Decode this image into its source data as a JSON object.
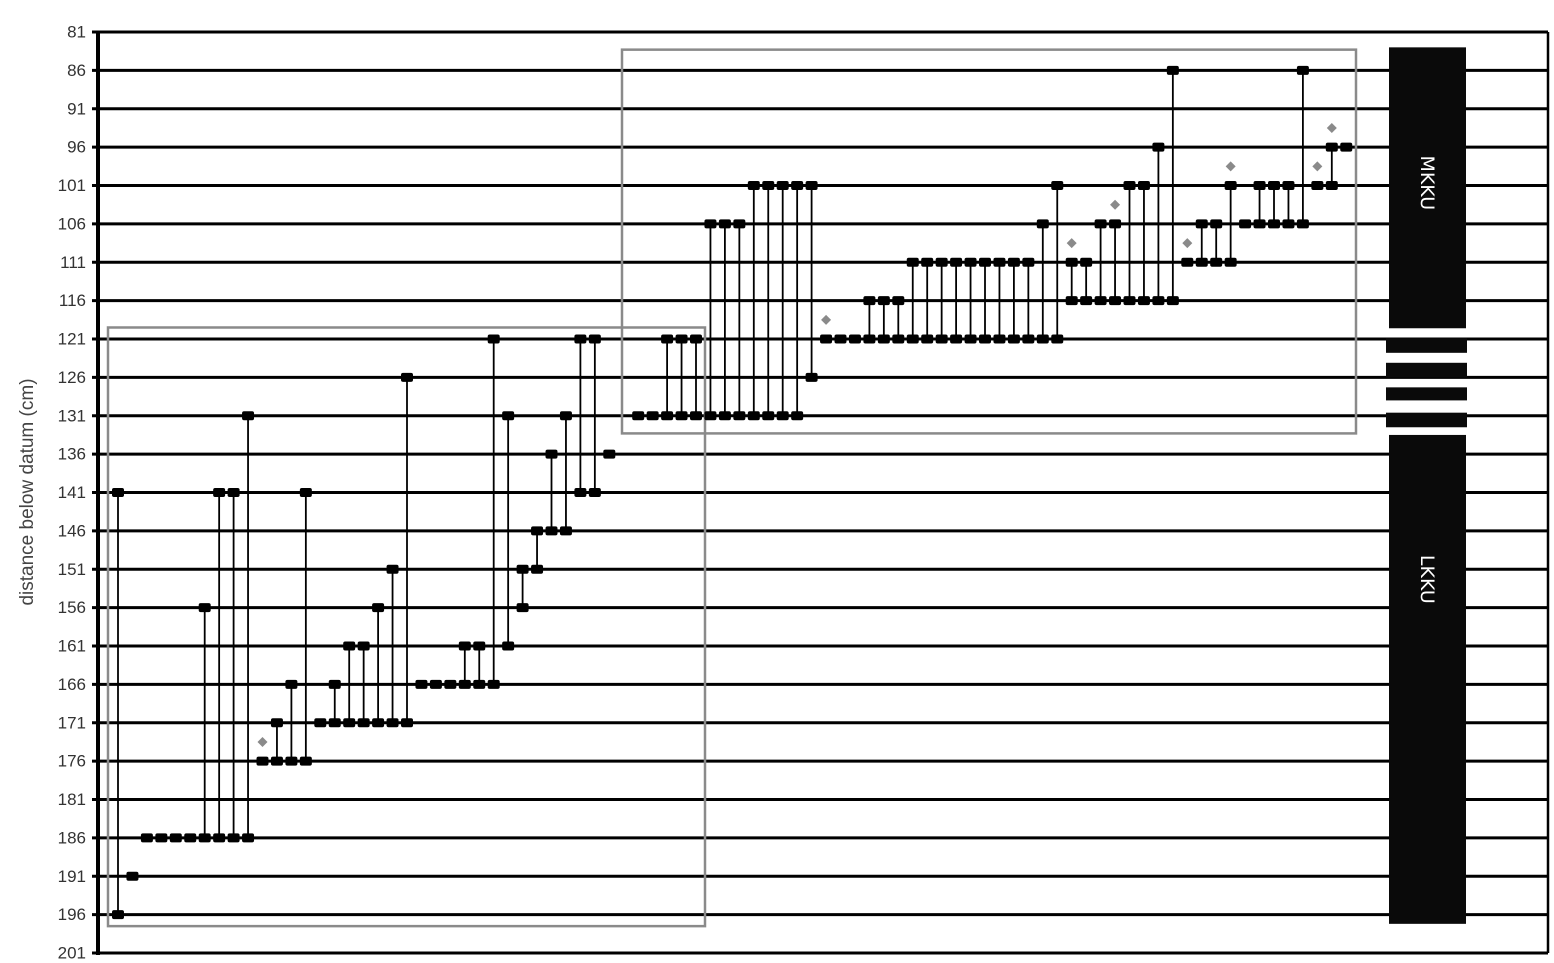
{
  "chart_data": {
    "type": "range-bar",
    "ylabel": "distance below datum (cm)",
    "ylim": [
      81,
      201
    ],
    "y_inverted": true,
    "yticks": [
      81,
      86,
      91,
      96,
      101,
      106,
      111,
      116,
      121,
      126,
      131,
      136,
      141,
      146,
      151,
      156,
      161,
      166,
      171,
      176,
      181,
      186,
      191,
      196,
      201
    ],
    "grid": true,
    "colors": {
      "range": "#000000",
      "outlier": "#8a8a8a",
      "box": "#8a8a8a",
      "unit": "#0a0a0a"
    },
    "samples": [
      [
        141,
        196
      ],
      [
        191,
        191
      ],
      [
        186,
        186
      ],
      [
        186,
        186
      ],
      [
        186,
        186
      ],
      [
        186,
        186
      ],
      [
        156,
        186
      ],
      [
        141,
        186
      ],
      [
        141,
        186
      ],
      [
        131,
        186
      ],
      [
        176,
        176
      ],
      [
        171,
        176
      ],
      [
        166,
        176
      ],
      [
        141,
        176
      ],
      [
        171,
        171
      ],
      [
        166,
        171
      ],
      [
        161,
        171
      ],
      [
        161,
        171
      ],
      [
        156,
        171
      ],
      [
        151,
        171
      ],
      [
        126,
        171
      ],
      [
        166,
        166
      ],
      [
        166,
        166
      ],
      [
        166,
        166
      ],
      [
        161,
        166
      ],
      [
        161,
        166
      ],
      [
        121,
        166
      ],
      [
        131,
        161
      ],
      [
        151,
        156
      ],
      [
        146,
        151
      ],
      [
        136,
        146
      ],
      [
        131,
        146
      ],
      [
        121,
        141
      ],
      [
        121,
        141
      ],
      [
        136,
        136
      ],
      null,
      [
        131,
        131
      ],
      [
        131,
        131
      ],
      [
        121,
        131
      ],
      [
        121,
        131
      ],
      [
        121,
        131
      ],
      [
        106,
        131
      ],
      [
        106,
        131
      ],
      [
        106,
        131
      ],
      [
        101,
        131
      ],
      [
        101,
        131
      ],
      [
        101,
        131
      ],
      [
        101,
        131
      ],
      [
        101,
        126
      ],
      [
        121,
        121
      ],
      [
        121,
        121
      ],
      [
        121,
        121
      ],
      [
        116,
        121
      ],
      [
        116,
        121
      ],
      [
        116,
        121
      ],
      [
        111,
        121
      ],
      [
        111,
        121
      ],
      [
        111,
        121
      ],
      [
        111,
        121
      ],
      [
        111,
        121
      ],
      [
        111,
        121
      ],
      [
        111,
        121
      ],
      [
        111,
        121
      ],
      [
        111,
        121
      ],
      [
        106,
        121
      ],
      [
        101,
        121
      ],
      [
        111,
        116
      ],
      [
        111,
        116
      ],
      [
        106,
        116
      ],
      [
        106,
        116
      ],
      [
        101,
        116
      ],
      [
        101,
        116
      ],
      [
        96,
        116
      ],
      [
        86,
        116
      ],
      [
        111,
        111
      ],
      [
        106,
        111
      ],
      [
        106,
        111
      ],
      [
        101,
        111
      ],
      [
        106,
        106
      ],
      [
        101,
        106
      ],
      [
        101,
        106
      ],
      [
        101,
        106
      ],
      [
        86,
        106
      ],
      [
        101,
        101
      ],
      [
        96,
        101
      ],
      [
        96,
        96
      ]
    ],
    "outliers": [
      {
        "sample": 10,
        "y": 173.5
      },
      {
        "sample": 49,
        "y": 118.5
      },
      {
        "sample": 66,
        "y": 108.5
      },
      {
        "sample": 69,
        "y": 103.5
      },
      {
        "sample": 74,
        "y": 108.5
      },
      {
        "sample": 77,
        "y": 98.5
      },
      {
        "sample": 83,
        "y": 98.5
      },
      {
        "sample": 84,
        "y": 93.5
      }
    ],
    "boxes": [
      {
        "from_sample": 0,
        "to_sample": 40,
        "y_top": 119.5,
        "y_bottom": 197.5
      },
      {
        "from_sample": 35,
        "to_sample": 85,
        "y_top": 83.3,
        "y_bottom": 133.3
      }
    ],
    "units": [
      {
        "label": "MKKU",
        "top": 83,
        "bottom": 119.6
      },
      {
        "label": "",
        "top": 120.9,
        "bottom": 122.8
      },
      {
        "label": "",
        "top": 124.1,
        "bottom": 126
      },
      {
        "label": "",
        "top": 127.3,
        "bottom": 129
      },
      {
        "label": "",
        "top": 130.6,
        "bottom": 132.5
      },
      {
        "label": "LKKU",
        "top": 133.5,
        "bottom": 197.2
      }
    ]
  }
}
